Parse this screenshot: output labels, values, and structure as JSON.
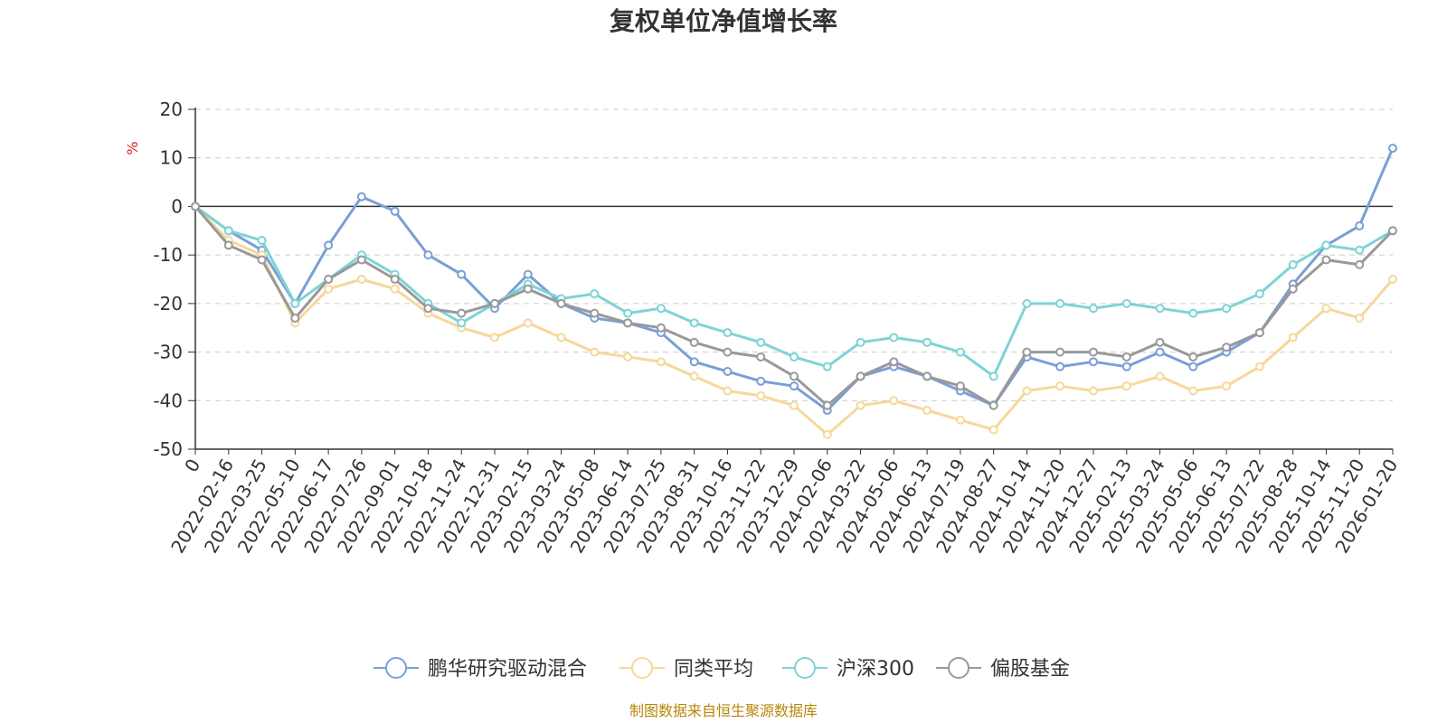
{
  "colors": {
    "series": [
      "#7a9fd6",
      "#f6d89a",
      "#7ed3d6",
      "#999999"
    ],
    "footer": "#b8860b",
    "unit": "#e02020",
    "grid": "#cccccc"
  },
  "chart_data": {
    "type": "line",
    "title": "复权单位净值增长率",
    "ylabel": "%",
    "ylim": [
      -50,
      20
    ],
    "yticks": [
      20,
      10,
      0,
      -10,
      -20,
      -30,
      -40,
      -50
    ],
    "xlabel": "",
    "categories": [
      "0",
      "2022-02-16",
      "2022-03-25",
      "2022-05-10",
      "2022-06-17",
      "2022-07-26",
      "2022-09-01",
      "2022-10-18",
      "2022-11-24",
      "2022-12-31",
      "2023-02-15",
      "2023-03-24",
      "2023-05-08",
      "2023-06-14",
      "2023-07-25",
      "2023-08-31",
      "2023-10-16",
      "2023-11-22",
      "2023-12-29",
      "2024-02-06",
      "2024-03-22",
      "2024-05-06",
      "2024-06-13",
      "2024-07-19",
      "2024-08-27",
      "2024-10-14",
      "2024-11-20",
      "2024-12-27",
      "2025-02-13",
      "2025-03-24",
      "2025-05-06",
      "2025-06-13",
      "2025-07-22",
      "2025-08-28",
      "2025-10-14",
      "2025-11-20",
      "2026-01-20"
    ],
    "series": [
      {
        "name": "鹏华研究驱动混合",
        "values": [
          0,
          -5,
          -9,
          -20,
          -8,
          2,
          -1,
          -10,
          -14,
          -21,
          -14,
          -20,
          -23,
          -24,
          -26,
          -32,
          -34,
          -36,
          -37,
          -42,
          -35,
          -33,
          -35,
          -38,
          -41,
          -31,
          -33,
          -32,
          -33,
          -30,
          -33,
          -30,
          -26,
          -16,
          -8,
          -4,
          12
        ]
      },
      {
        "name": "同类平均",
        "values": [
          0,
          -7,
          -10,
          -24,
          -17,
          -15,
          -17,
          -22,
          -25,
          -27,
          -24,
          -27,
          -30,
          -31,
          -32,
          -35,
          -38,
          -39,
          -41,
          -47,
          -41,
          -40,
          -42,
          -44,
          -46,
          -38,
          -37,
          -38,
          -37,
          -35,
          -38,
          -37,
          -33,
          -27,
          -21,
          -23,
          -15
        ]
      },
      {
        "name": "沪深300",
        "values": [
          0,
          -5,
          -7,
          -20,
          -15,
          -10,
          -14,
          -20,
          -24,
          -20,
          -16,
          -19,
          -18,
          -22,
          -21,
          -24,
          -26,
          -28,
          -31,
          -33,
          -28,
          -27,
          -28,
          -30,
          -35,
          -20,
          -20,
          -21,
          -20,
          -21,
          -22,
          -21,
          -18,
          -12,
          -8,
          -9,
          -5
        ]
      },
      {
        "name": "偏股基金",
        "values": [
          0,
          -8,
          -11,
          -23,
          -15,
          -11,
          -15,
          -21,
          -22,
          -20,
          -17,
          -20,
          -22,
          -24,
          -25,
          -28,
          -30,
          -31,
          -35,
          -41,
          -35,
          -32,
          -35,
          -37,
          -41,
          -30,
          -30,
          -30,
          -31,
          -28,
          -31,
          -29,
          -26,
          -17,
          -11,
          -12,
          -5
        ]
      }
    ]
  },
  "footer": "制图数据来自恒生聚源数据库"
}
